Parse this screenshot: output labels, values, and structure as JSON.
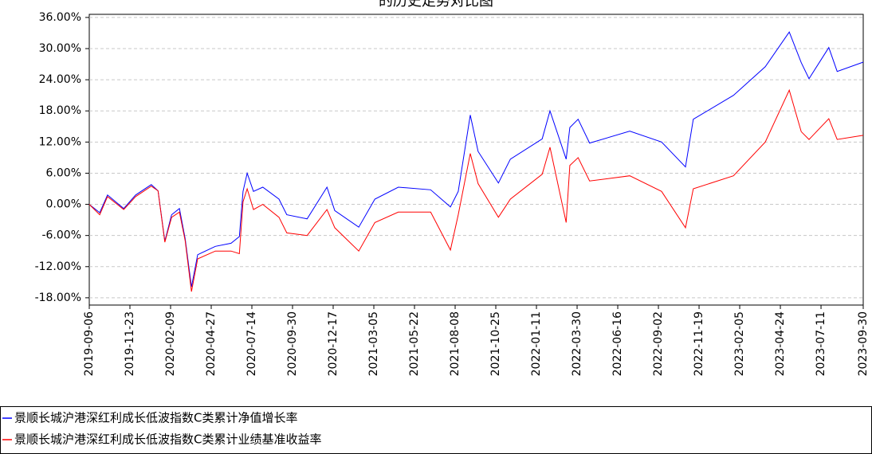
{
  "chart_data": {
    "type": "line",
    "title": "的历史走势对比图",
    "x": [
      "2019-09-06",
      "2019-09-26",
      "2019-10-11",
      "2019-11-11",
      "2019-12-04",
      "2020-01-03",
      "2020-01-16",
      "2020-01-29",
      "2020-02-11",
      "2020-02-26",
      "2020-03-08",
      "2020-03-20",
      "2020-04-01",
      "2020-05-05",
      "2020-06-04",
      "2020-06-20",
      "2020-06-27",
      "2020-07-05",
      "2020-07-17",
      "2020-08-04",
      "2020-09-04",
      "2020-09-19",
      "2020-10-28",
      "2020-12-05",
      "2020-12-20",
      "2021-02-04",
      "2021-03-07",
      "2021-04-21",
      "2021-06-22",
      "2021-07-30",
      "2021-08-14",
      "2021-09-06",
      "2021-09-21",
      "2021-10-30",
      "2021-11-22",
      "2022-01-22",
      "2022-02-06",
      "2022-03-09",
      "2022-03-16",
      "2022-04-01",
      "2022-04-23",
      "2022-07-09",
      "2022-09-08",
      "2022-10-24",
      "2022-11-08",
      "2023-01-24",
      "2023-03-26",
      "2023-05-11",
      "2023-06-03",
      "2023-06-18",
      "2023-07-26",
      "2023-08-11",
      "2023-09-30"
    ],
    "series": [
      {
        "name": "景顺长城沪港深红利成长低波指数C类累计净值增长率",
        "color": "#0000ff",
        "values": [
          0,
          -1.6,
          1.8,
          -0.8,
          1.8,
          3.8,
          2.6,
          -7.1,
          -2.0,
          -0.8,
          -6.6,
          -15.9,
          -9.7,
          -8.1,
          -7.5,
          -6.2,
          2.5,
          6.0,
          2.5,
          3.3,
          1.0,
          -2.0,
          -2.8,
          3.3,
          -1.2,
          -4.4,
          1.0,
          3.3,
          2.8,
          -0.5,
          2.5,
          17.2,
          10.2,
          4.1,
          8.7,
          12.6,
          18.0,
          8.7,
          14.8,
          16.4,
          11.8,
          14.1,
          12.0,
          7.2,
          16.4,
          21.0,
          26.5,
          33.2,
          27.3,
          24.2,
          30.2,
          25.6,
          27.4
        ]
      },
      {
        "name": "景顺长城沪港深红利成长低波指数C类累计业绩基准收益率",
        "color": "#ff0000",
        "values": [
          0,
          -2.0,
          1.5,
          -1.0,
          1.5,
          3.5,
          2.6,
          -7.3,
          -2.5,
          -1.5,
          -7.0,
          -16.8,
          -10.5,
          -9.0,
          -9.0,
          -9.5,
          0.5,
          3.0,
          -1.0,
          0,
          -2.5,
          -5.5,
          -6.0,
          -1.0,
          -4.5,
          -9.0,
          -3.5,
          -1.5,
          -1.5,
          -8.8,
          -2.0,
          9.8,
          4.0,
          -2.5,
          1.0,
          5.8,
          11.0,
          -3.5,
          7.5,
          9.0,
          4.5,
          5.5,
          2.5,
          -4.5,
          3.0,
          5.5,
          12.0,
          22.0,
          14.0,
          12.5,
          16.5,
          12.5,
          13.3
        ]
      }
    ],
    "xlim": [
      "2019-09-06",
      "2023-09-30"
    ],
    "xticks": [
      "2019-09-06",
      "2019-11-23",
      "2020-02-09",
      "2020-04-27",
      "2020-07-14",
      "2020-09-30",
      "2020-12-17",
      "2021-03-05",
      "2021-05-22",
      "2021-08-08",
      "2021-10-25",
      "2022-01-11",
      "2022-03-30",
      "2022-06-16",
      "2022-09-02",
      "2022-11-19",
      "2023-02-05",
      "2023-04-24",
      "2023-07-11",
      "2023-09-30"
    ],
    "ylim": [
      -19.4,
      36.6
    ],
    "yticks": [
      {
        "value": 36,
        "label": "36.00%"
      },
      {
        "value": 30,
        "label": "30.00%"
      },
      {
        "value": 24,
        "label": "24.00%"
      },
      {
        "value": 18,
        "label": "18.00%"
      },
      {
        "value": 12,
        "label": "12.00%"
      },
      {
        "value": 6,
        "label": "6.00%"
      },
      {
        "value": 0,
        "label": "0.00%"
      },
      {
        "value": -6,
        "label": "-6.00%"
      },
      {
        "value": -12,
        "label": "-12.00%"
      },
      {
        "value": -18,
        "label": "-18.00%"
      }
    ],
    "grid": true,
    "legend": "bottom"
  }
}
